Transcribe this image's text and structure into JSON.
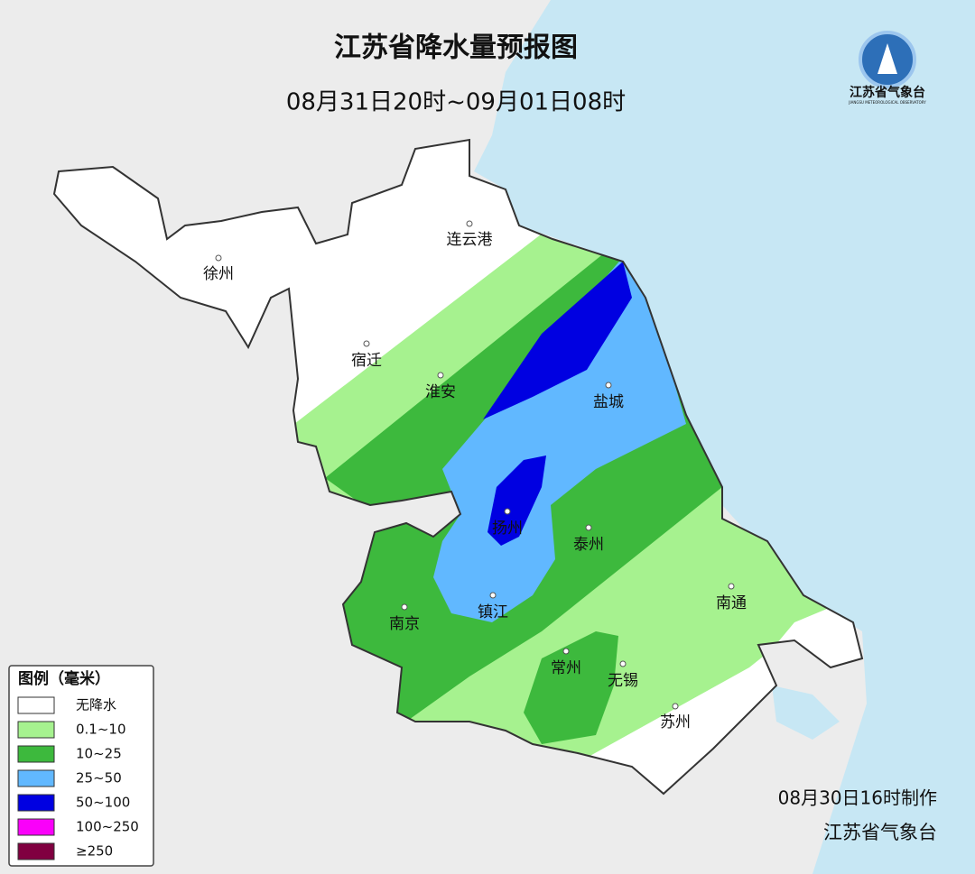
{
  "header": {
    "title": "江苏省降水量预报图",
    "subtitle": "08月31日20时~09月01日08时"
  },
  "logo": {
    "name": "江苏省气象台",
    "english": "JIANGSU METEOROLOGICAL OBSERVATORY"
  },
  "cities": [
    {
      "label": "连云港"
    },
    {
      "label": "徐州"
    },
    {
      "label": "宿迁"
    },
    {
      "label": "淮安"
    },
    {
      "label": "盐城"
    },
    {
      "label": "扬州"
    },
    {
      "label": "泰州"
    },
    {
      "label": "南通"
    },
    {
      "label": "南京"
    },
    {
      "label": "镇江"
    },
    {
      "label": "常州"
    },
    {
      "label": "无锡"
    },
    {
      "label": "苏州"
    }
  ],
  "legend": {
    "title": "图例（毫米）",
    "items": [
      {
        "label": "无降水",
        "color": "#ffffff"
      },
      {
        "label": "0.1~10",
        "color": "#a6f28f"
      },
      {
        "label": "10~25",
        "color": "#3db93d"
      },
      {
        "label": "25~50",
        "color": "#61b8ff"
      },
      {
        "label": "50~100",
        "color": "#0000e1"
      },
      {
        "label": "100~250",
        "color": "#fa00fa"
      },
      {
        "label": "≥250",
        "color": "#800040"
      }
    ]
  },
  "footer": {
    "made": "08月30日16时制作",
    "issuer": "江苏省气象台"
  }
}
